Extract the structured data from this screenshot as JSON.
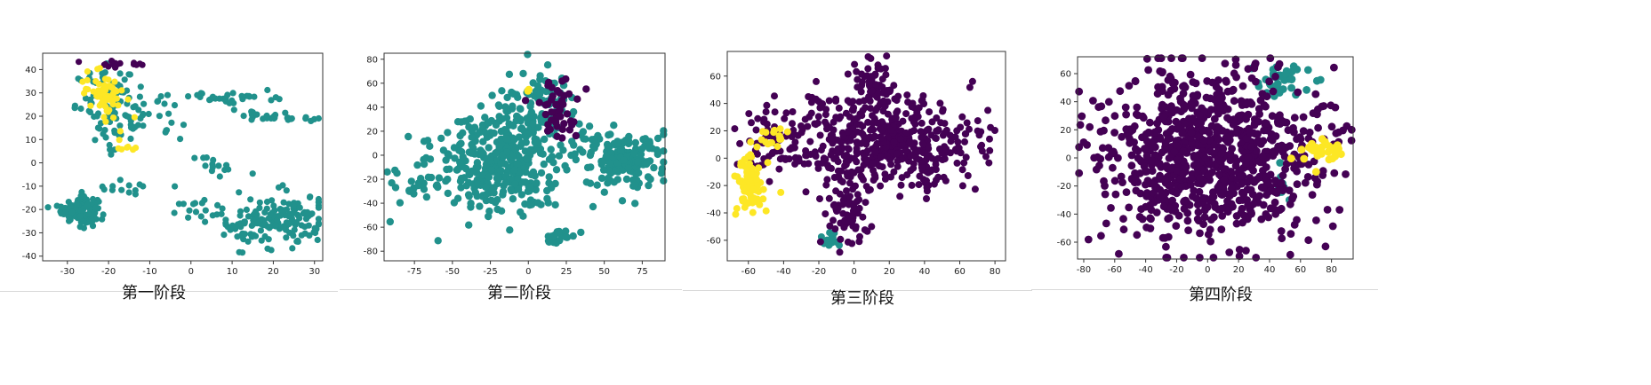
{
  "colors": {
    "purple": "#440154",
    "teal": "#21918c",
    "yellow": "#fde725"
  },
  "panels": [
    {
      "caption": "第一阶段",
      "chart_data": {
        "type": "scatter",
        "xlim": [
          -36,
          32
        ],
        "ylim": [
          -42,
          47
        ],
        "xticks": [
          -30,
          -20,
          -10,
          0,
          10,
          20,
          30
        ],
        "yticks": [
          -40,
          -30,
          -20,
          -10,
          0,
          10,
          20,
          30,
          40
        ],
        "grid": false,
        "clusters": [
          {
            "color": "teal",
            "cx": -27,
            "cy": -20,
            "sx": 2.2,
            "sy": 2.6,
            "n": 150
          },
          {
            "color": "teal",
            "cx": -20,
            "cy": 24,
            "sx": 4,
            "sy": 8,
            "n": 70
          },
          {
            "color": "teal",
            "cx": -12,
            "cy": 20,
            "sx": 5,
            "sy": 6,
            "n": 40
          },
          {
            "color": "teal",
            "cx": 10,
            "cy": 28,
            "sx": 5,
            "sy": 1.5,
            "n": 30
          },
          {
            "color": "teal",
            "cx": 22,
            "cy": 20,
            "sx": 6,
            "sy": 1,
            "n": 30
          },
          {
            "color": "teal",
            "cx": 6,
            "cy": -1,
            "sx": 3,
            "sy": 2,
            "n": 14
          },
          {
            "color": "teal",
            "cx": -15,
            "cy": -10,
            "sx": 4,
            "sy": 2,
            "n": 14
          },
          {
            "color": "teal",
            "cx": 2,
            "cy": -20,
            "sx": 3,
            "sy": 2,
            "n": 14
          },
          {
            "color": "teal",
            "cx": 20,
            "cy": -25,
            "sx": 7,
            "sy": 6,
            "n": 160
          },
          {
            "color": "yellow",
            "cx": -21,
            "cy": 30,
            "sx": 2.5,
            "sy": 5,
            "n": 60
          },
          {
            "color": "yellow",
            "cx": -16,
            "cy": 8,
            "sx": 2,
            "sy": 2,
            "n": 8
          },
          {
            "color": "purple",
            "cx": -20,
            "cy": 42,
            "sx": 2.5,
            "sy": 1,
            "n": 12
          },
          {
            "color": "purple",
            "cx": -13,
            "cy": 43,
            "sx": 1,
            "sy": 0.6,
            "n": 5
          }
        ]
      }
    },
    {
      "caption": "第二阶段",
      "chart_data": {
        "type": "scatter",
        "xlim": [
          -95,
          90
        ],
        "ylim": [
          -88,
          85
        ],
        "xticks": [
          -75,
          -50,
          -25,
          0,
          25,
          50,
          75
        ],
        "yticks": [
          -80,
          -60,
          -40,
          -20,
          0,
          20,
          40,
          60,
          80
        ],
        "grid": false,
        "clusters": [
          {
            "color": "teal",
            "cx": -20,
            "cy": -5,
            "sx": 22,
            "sy": 22,
            "n": 380
          },
          {
            "color": "teal",
            "cx": 5,
            "cy": 40,
            "sx": 12,
            "sy": 15,
            "n": 100
          },
          {
            "color": "teal",
            "cx": 60,
            "cy": -5,
            "sx": 15,
            "sy": 12,
            "n": 160
          },
          {
            "color": "teal",
            "cx": -75,
            "cy": -25,
            "sx": 7,
            "sy": 7,
            "n": 15
          },
          {
            "color": "teal",
            "cx": 20,
            "cy": -68,
            "sx": 5,
            "sy": 4,
            "n": 18
          },
          {
            "color": "purple",
            "cx": 18,
            "cy": 40,
            "sx": 8,
            "sy": 12,
            "n": 45
          },
          {
            "color": "yellow",
            "cx": 0,
            "cy": 54,
            "sx": 1,
            "sy": 1,
            "n": 2
          }
        ]
      }
    },
    {
      "caption": "第三阶段",
      "chart_data": {
        "type": "scatter",
        "xlim": [
          -72,
          86
        ],
        "ylim": [
          -75,
          78
        ],
        "xticks": [
          -60,
          -40,
          -20,
          0,
          20,
          40,
          60,
          80
        ],
        "yticks": [
          -60,
          -40,
          -20,
          0,
          20,
          40,
          60
        ],
        "grid": false,
        "clusters": [
          {
            "color": "purple",
            "cx": 15,
            "cy": 10,
            "sx": 28,
            "sy": 18,
            "n": 520
          },
          {
            "color": "purple",
            "cx": 10,
            "cy": 55,
            "sx": 6,
            "sy": 10,
            "n": 60
          },
          {
            "color": "purple",
            "cx": -5,
            "cy": -40,
            "sx": 6,
            "sy": 12,
            "n": 60
          },
          {
            "color": "purple",
            "cx": -50,
            "cy": 10,
            "sx": 8,
            "sy": 12,
            "n": 40
          },
          {
            "color": "yellow",
            "cx": -58,
            "cy": -20,
            "sx": 4,
            "sy": 12,
            "n": 80
          },
          {
            "color": "yellow",
            "cx": -45,
            "cy": 15,
            "sx": 5,
            "sy": 5,
            "n": 15
          },
          {
            "color": "teal",
            "cx": -13,
            "cy": -60,
            "sx": 4,
            "sy": 4,
            "n": 18
          }
        ]
      }
    },
    {
      "caption": "第四阶段",
      "chart_data": {
        "type": "scatter",
        "xlim": [
          -84,
          94
        ],
        "ylim": [
          -72,
          72
        ],
        "xticks": [
          -80,
          -60,
          -40,
          -20,
          0,
          20,
          40,
          60,
          80
        ],
        "yticks": [
          -60,
          -40,
          -20,
          0,
          20,
          40,
          60
        ],
        "grid": false,
        "clusters": [
          {
            "color": "purple",
            "cx": 0,
            "cy": 0,
            "sx": 35,
            "sy": 30,
            "n": 900
          },
          {
            "color": "teal",
            "cx": 45,
            "cy": 55,
            "sx": 10,
            "sy": 6,
            "n": 40
          },
          {
            "color": "teal",
            "cx": 48,
            "cy": -20,
            "sx": 4,
            "sy": 8,
            "n": 8
          },
          {
            "color": "yellow",
            "cx": 72,
            "cy": 5,
            "sx": 8,
            "sy": 4,
            "n": 35
          }
        ]
      }
    }
  ]
}
